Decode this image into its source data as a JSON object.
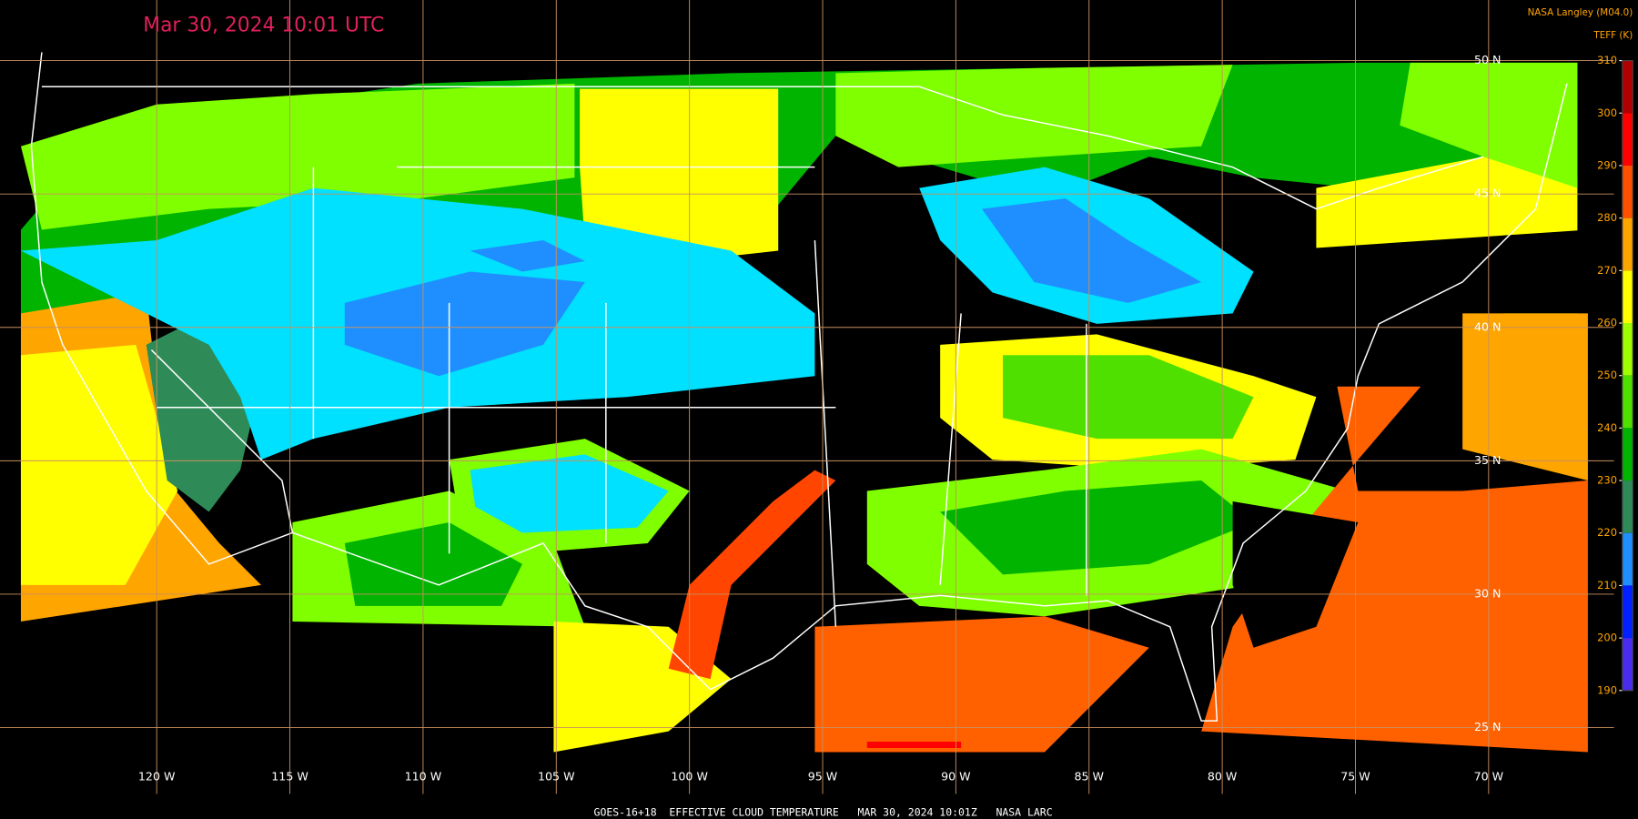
{
  "header": {
    "title": "Mar 30, 2024 10:01 UTC",
    "credit": "NASA Langley (M04.0)"
  },
  "colorbar": {
    "label": "TEFF (K)",
    "lim": [
      190,
      310
    ],
    "ticks": [
      310,
      300,
      290,
      280,
      270,
      260,
      250,
      240,
      230,
      220,
      210,
      200,
      190
    ],
    "colors": [
      "#b00000",
      "#ff0000",
      "#ff5000",
      "#ffa500",
      "#ffff00",
      "#a0ff00",
      "#50e000",
      "#00b400",
      "#2e8b57",
      "#1f8fff",
      "#0020ff",
      "#4a2cf0",
      "#9a50e8"
    ]
  },
  "map": {
    "latitudes": [
      "50 N",
      "45 N",
      "40 N",
      "35 N",
      "30 N",
      "25 N"
    ],
    "longitudes": [
      "120 W",
      "115 W",
      "110 W",
      "105 W",
      "100 W",
      "95 W",
      "90 W",
      "85 W",
      "80 W",
      "75 W",
      "70 W"
    ]
  },
  "footer": "GOES-16+18  EFFECTIVE CLOUD TEMPERATURE   MAR 30, 2024 10:01Z   NASA LARC"
}
